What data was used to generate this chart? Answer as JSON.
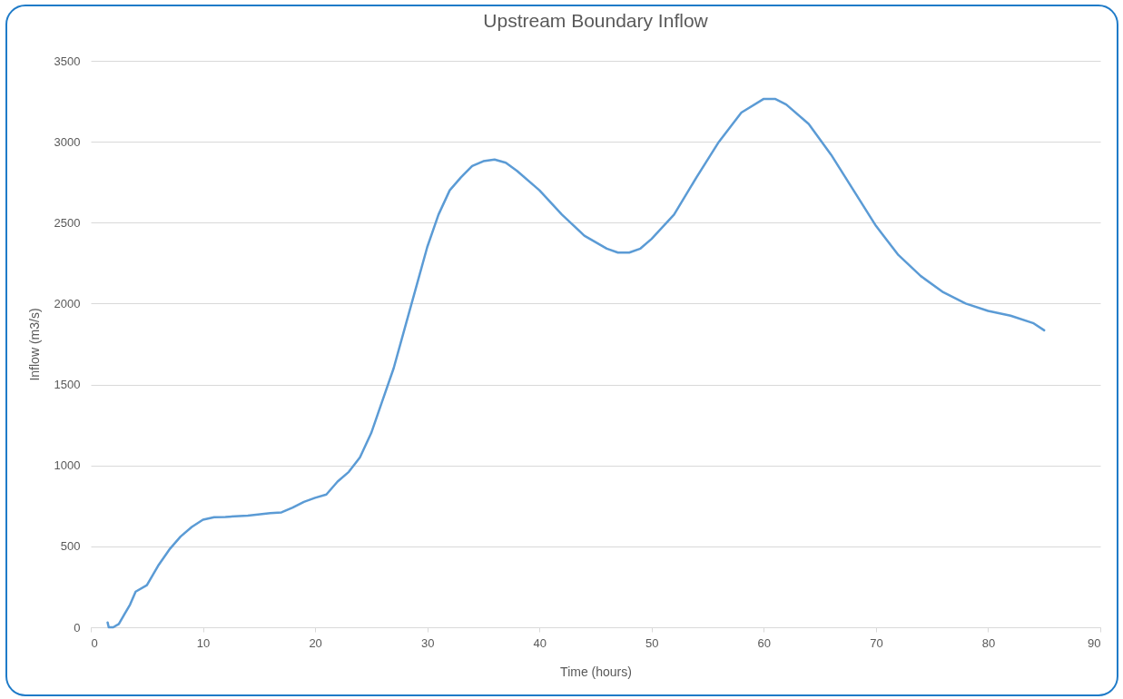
{
  "chart_data": {
    "type": "line",
    "title": "Upstream Boundary Inflow",
    "xlabel": "Time (hours)",
    "ylabel": "Inflow (m3/s)",
    "xlim": [
      0,
      90
    ],
    "xticks": [
      0,
      10,
      20,
      30,
      40,
      50,
      60,
      70,
      80,
      90
    ],
    "ylim": [
      0,
      3500
    ],
    "yticks": [
      0,
      500,
      1000,
      1500,
      2000,
      2500,
      3000,
      3500
    ],
    "grid": "y",
    "legend": false,
    "series": [
      {
        "color": "#5b9bd5",
        "x": [
          1.5,
          1.6,
          2,
          2.5,
          3,
          3.5,
          4,
          5,
          6,
          7,
          8,
          9,
          10,
          11,
          12,
          14,
          16,
          17,
          18,
          19,
          20,
          21,
          22,
          23,
          24,
          25,
          26,
          27,
          28,
          29,
          30,
          31,
          32,
          33,
          34,
          35,
          36,
          37,
          38,
          40,
          42,
          44,
          46,
          47,
          48,
          49,
          50,
          52,
          54,
          56,
          58,
          60,
          61,
          62,
          64,
          66,
          68,
          70,
          72,
          74,
          76,
          78,
          80,
          82,
          84,
          85
        ],
        "values": [
          30,
          0,
          0,
          20,
          80,
          140,
          220,
          260,
          380,
          480,
          560,
          620,
          665,
          680,
          682,
          690,
          705,
          710,
          740,
          775,
          800,
          820,
          900,
          960,
          1050,
          1200,
          1400,
          1600,
          1850,
          2100,
          2350,
          2550,
          2700,
          2780,
          2850,
          2880,
          2890,
          2870,
          2820,
          2700,
          2550,
          2420,
          2340,
          2315,
          2315,
          2340,
          2400,
          2550,
          2780,
          3000,
          3180,
          3265,
          3265,
          3230,
          3110,
          2920,
          2700,
          2480,
          2300,
          2170,
          2070,
          2000,
          1955,
          1925,
          1880,
          1835
        ]
      }
    ]
  }
}
